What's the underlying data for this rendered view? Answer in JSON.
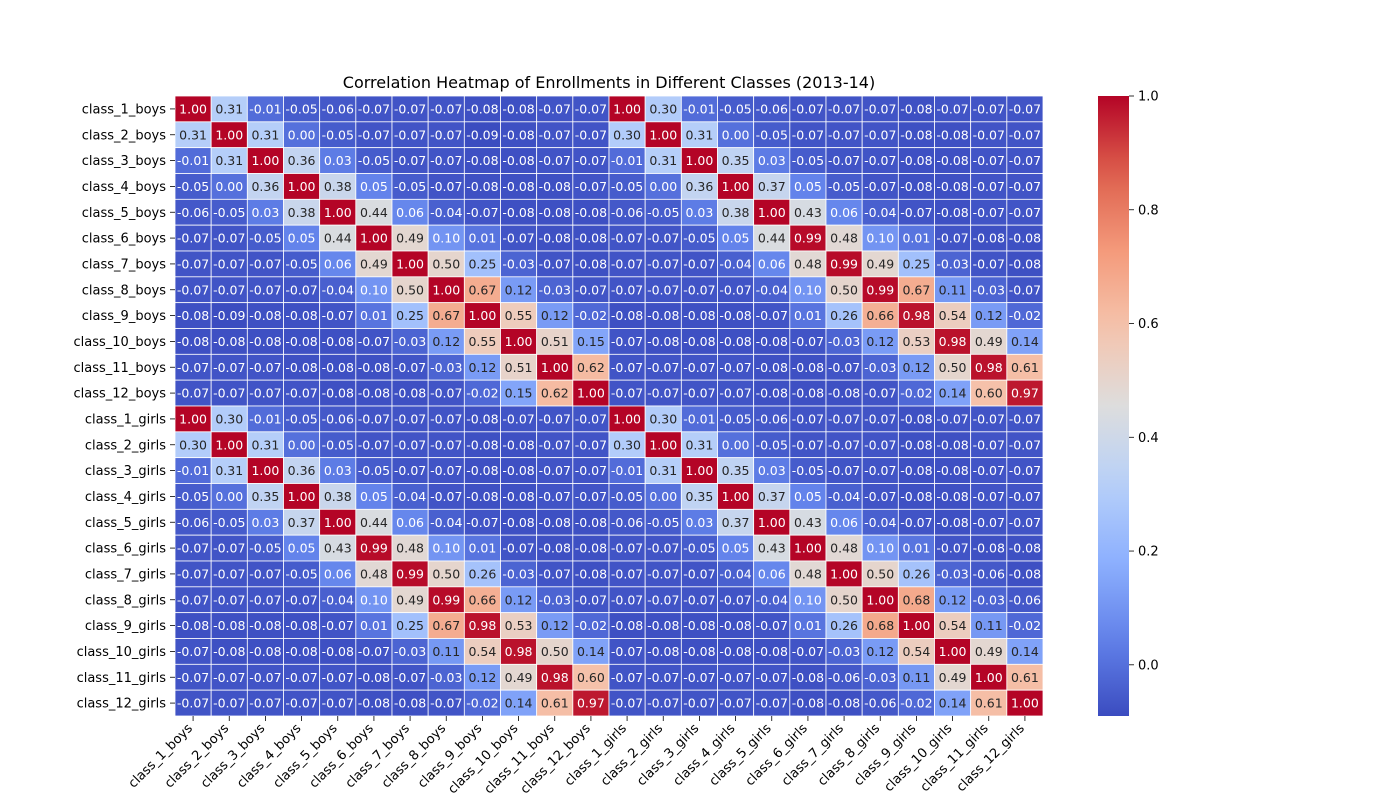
{
  "chart_data": {
    "type": "heatmap",
    "title": "Correlation Heatmap of Enrollments in Different Classes (2013-14)",
    "colormap": "coolwarm",
    "grid_lines": "white",
    "categories": [
      "class_1_boys",
      "class_2_boys",
      "class_3_boys",
      "class_4_boys",
      "class_5_boys",
      "class_6_boys",
      "class_7_boys",
      "class_8_boys",
      "class_9_boys",
      "class_10_boys",
      "class_11_boys",
      "class_12_boys",
      "class_1_girls",
      "class_2_girls",
      "class_3_girls",
      "class_4_girls",
      "class_5_girls",
      "class_6_girls",
      "class_7_girls",
      "class_8_girls",
      "class_9_girls",
      "class_10_girls",
      "class_11_girls",
      "class_12_girls"
    ],
    "values": [
      [
        1.0,
        0.31,
        -0.01,
        -0.05,
        -0.06,
        -0.07,
        -0.07,
        -0.07,
        -0.08,
        -0.08,
        -0.07,
        -0.07,
        1.0,
        0.3,
        -0.01,
        -0.05,
        -0.06,
        -0.07,
        -0.07,
        -0.07,
        -0.08,
        -0.07,
        -0.07,
        -0.07
      ],
      [
        0.31,
        1.0,
        0.31,
        0.0,
        -0.05,
        -0.07,
        -0.07,
        -0.07,
        -0.09,
        -0.08,
        -0.07,
        -0.07,
        0.3,
        1.0,
        0.31,
        0.0,
        -0.05,
        -0.07,
        -0.07,
        -0.07,
        -0.08,
        -0.08,
        -0.07,
        -0.07
      ],
      [
        -0.01,
        0.31,
        1.0,
        0.36,
        0.03,
        -0.05,
        -0.07,
        -0.07,
        -0.08,
        -0.08,
        -0.07,
        -0.07,
        -0.01,
        0.31,
        1.0,
        0.35,
        0.03,
        -0.05,
        -0.07,
        -0.07,
        -0.08,
        -0.08,
        -0.07,
        -0.07
      ],
      [
        -0.05,
        0.0,
        0.36,
        1.0,
        0.38,
        0.05,
        -0.05,
        -0.07,
        -0.08,
        -0.08,
        -0.08,
        -0.07,
        -0.05,
        0.0,
        0.36,
        1.0,
        0.37,
        0.05,
        -0.05,
        -0.07,
        -0.08,
        -0.08,
        -0.07,
        -0.07
      ],
      [
        -0.06,
        -0.05,
        0.03,
        0.38,
        1.0,
        0.44,
        0.06,
        -0.04,
        -0.07,
        -0.08,
        -0.08,
        -0.08,
        -0.06,
        -0.05,
        0.03,
        0.38,
        1.0,
        0.43,
        0.06,
        -0.04,
        -0.07,
        -0.08,
        -0.07,
        -0.07
      ],
      [
        -0.07,
        -0.07,
        -0.05,
        0.05,
        0.44,
        1.0,
        0.49,
        0.1,
        0.01,
        -0.07,
        -0.08,
        -0.08,
        -0.07,
        -0.07,
        -0.05,
        0.05,
        0.44,
        0.99,
        0.48,
        0.1,
        0.01,
        -0.07,
        -0.08,
        -0.08
      ],
      [
        -0.07,
        -0.07,
        -0.07,
        -0.05,
        0.06,
        0.49,
        1.0,
        0.5,
        0.25,
        -0.03,
        -0.07,
        -0.08,
        -0.07,
        -0.07,
        -0.07,
        -0.04,
        0.06,
        0.48,
        0.99,
        0.49,
        0.25,
        -0.03,
        -0.07,
        -0.08
      ],
      [
        -0.07,
        -0.07,
        -0.07,
        -0.07,
        -0.04,
        0.1,
        0.5,
        1.0,
        0.67,
        0.12,
        -0.03,
        -0.07,
        -0.07,
        -0.07,
        -0.07,
        -0.07,
        -0.04,
        0.1,
        0.5,
        0.99,
        0.67,
        0.11,
        -0.03,
        -0.07
      ],
      [
        -0.08,
        -0.09,
        -0.08,
        -0.08,
        -0.07,
        0.01,
        0.25,
        0.67,
        1.0,
        0.55,
        0.12,
        -0.02,
        -0.08,
        -0.08,
        -0.08,
        -0.08,
        -0.07,
        0.01,
        0.26,
        0.66,
        0.98,
        0.54,
        0.12,
        -0.02
      ],
      [
        -0.08,
        -0.08,
        -0.08,
        -0.08,
        -0.08,
        -0.07,
        -0.03,
        0.12,
        0.55,
        1.0,
        0.51,
        0.15,
        -0.07,
        -0.08,
        -0.08,
        -0.08,
        -0.08,
        -0.07,
        -0.03,
        0.12,
        0.53,
        0.98,
        0.49,
        0.14
      ],
      [
        -0.07,
        -0.07,
        -0.07,
        -0.08,
        -0.08,
        -0.08,
        -0.07,
        -0.03,
        0.12,
        0.51,
        1.0,
        0.62,
        -0.07,
        -0.07,
        -0.07,
        -0.07,
        -0.08,
        -0.08,
        -0.07,
        -0.03,
        0.12,
        0.5,
        0.98,
        0.61
      ],
      [
        -0.07,
        -0.07,
        -0.07,
        -0.07,
        -0.08,
        -0.08,
        -0.08,
        -0.07,
        -0.02,
        0.15,
        0.62,
        1.0,
        -0.07,
        -0.07,
        -0.07,
        -0.07,
        -0.08,
        -0.08,
        -0.08,
        -0.07,
        -0.02,
        0.14,
        0.6,
        0.97
      ],
      [
        1.0,
        0.3,
        -0.01,
        -0.05,
        -0.06,
        -0.07,
        -0.07,
        -0.07,
        -0.08,
        -0.07,
        -0.07,
        -0.07,
        1.0,
        0.3,
        -0.01,
        -0.05,
        -0.06,
        -0.07,
        -0.07,
        -0.07,
        -0.08,
        -0.07,
        -0.07,
        -0.07
      ],
      [
        0.3,
        1.0,
        0.31,
        0.0,
        -0.05,
        -0.07,
        -0.07,
        -0.07,
        -0.08,
        -0.08,
        -0.07,
        -0.07,
        0.3,
        1.0,
        0.31,
        0.0,
        -0.05,
        -0.07,
        -0.07,
        -0.07,
        -0.08,
        -0.08,
        -0.07,
        -0.07
      ],
      [
        -0.01,
        0.31,
        1.0,
        0.36,
        0.03,
        -0.05,
        -0.07,
        -0.07,
        -0.08,
        -0.08,
        -0.07,
        -0.07,
        -0.01,
        0.31,
        1.0,
        0.35,
        0.03,
        -0.05,
        -0.07,
        -0.07,
        -0.08,
        -0.08,
        -0.07,
        -0.07
      ],
      [
        -0.05,
        0.0,
        0.35,
        1.0,
        0.38,
        0.05,
        -0.04,
        -0.07,
        -0.08,
        -0.08,
        -0.07,
        -0.07,
        -0.05,
        0.0,
        0.35,
        1.0,
        0.37,
        0.05,
        -0.04,
        -0.07,
        -0.08,
        -0.08,
        -0.07,
        -0.07
      ],
      [
        -0.06,
        -0.05,
        0.03,
        0.37,
        1.0,
        0.44,
        0.06,
        -0.04,
        -0.07,
        -0.08,
        -0.08,
        -0.08,
        -0.06,
        -0.05,
        0.03,
        0.37,
        1.0,
        0.43,
        0.06,
        -0.04,
        -0.07,
        -0.08,
        -0.07,
        -0.07
      ],
      [
        -0.07,
        -0.07,
        -0.05,
        0.05,
        0.43,
        0.99,
        0.48,
        0.1,
        0.01,
        -0.07,
        -0.08,
        -0.08,
        -0.07,
        -0.07,
        -0.05,
        0.05,
        0.43,
        1.0,
        0.48,
        0.1,
        0.01,
        -0.07,
        -0.08,
        -0.08
      ],
      [
        -0.07,
        -0.07,
        -0.07,
        -0.05,
        0.06,
        0.48,
        0.99,
        0.5,
        0.26,
        -0.03,
        -0.07,
        -0.08,
        -0.07,
        -0.07,
        -0.07,
        -0.04,
        0.06,
        0.48,
        1.0,
        0.5,
        0.26,
        -0.03,
        -0.06,
        -0.08
      ],
      [
        -0.07,
        -0.07,
        -0.07,
        -0.07,
        -0.04,
        0.1,
        0.49,
        0.99,
        0.66,
        0.12,
        -0.03,
        -0.07,
        -0.07,
        -0.07,
        -0.07,
        -0.07,
        -0.04,
        0.1,
        0.5,
        1.0,
        0.68,
        0.12,
        -0.03,
        -0.06
      ],
      [
        -0.08,
        -0.08,
        -0.08,
        -0.08,
        -0.07,
        0.01,
        0.25,
        0.67,
        0.98,
        0.53,
        0.12,
        -0.02,
        -0.08,
        -0.08,
        -0.08,
        -0.08,
        -0.07,
        0.01,
        0.26,
        0.68,
        1.0,
        0.54,
        0.11,
        -0.02
      ],
      [
        -0.07,
        -0.08,
        -0.08,
        -0.08,
        -0.08,
        -0.07,
        -0.03,
        0.11,
        0.54,
        0.98,
        0.5,
        0.14,
        -0.07,
        -0.08,
        -0.08,
        -0.08,
        -0.08,
        -0.07,
        -0.03,
        0.12,
        0.54,
        1.0,
        0.49,
        0.14
      ],
      [
        -0.07,
        -0.07,
        -0.07,
        -0.07,
        -0.07,
        -0.08,
        -0.07,
        -0.03,
        0.12,
        0.49,
        0.98,
        0.6,
        -0.07,
        -0.07,
        -0.07,
        -0.07,
        -0.07,
        -0.08,
        -0.06,
        -0.03,
        0.11,
        0.49,
        1.0,
        0.61
      ],
      [
        -0.07,
        -0.07,
        -0.07,
        -0.07,
        -0.07,
        -0.08,
        -0.08,
        -0.07,
        -0.02,
        0.14,
        0.61,
        0.97,
        -0.07,
        -0.07,
        -0.07,
        -0.07,
        -0.07,
        -0.08,
        -0.08,
        -0.06,
        -0.02,
        0.14,
        0.61,
        1.0
      ]
    ],
    "colorbar": {
      "vmin": -0.09,
      "vmax": 1.0,
      "ticks": [
        0.0,
        0.2,
        0.4,
        0.6,
        0.8,
        1.0
      ],
      "tick_labels": [
        "0.0",
        "0.2",
        "0.4",
        "0.6",
        "0.8",
        "1.0"
      ]
    }
  }
}
